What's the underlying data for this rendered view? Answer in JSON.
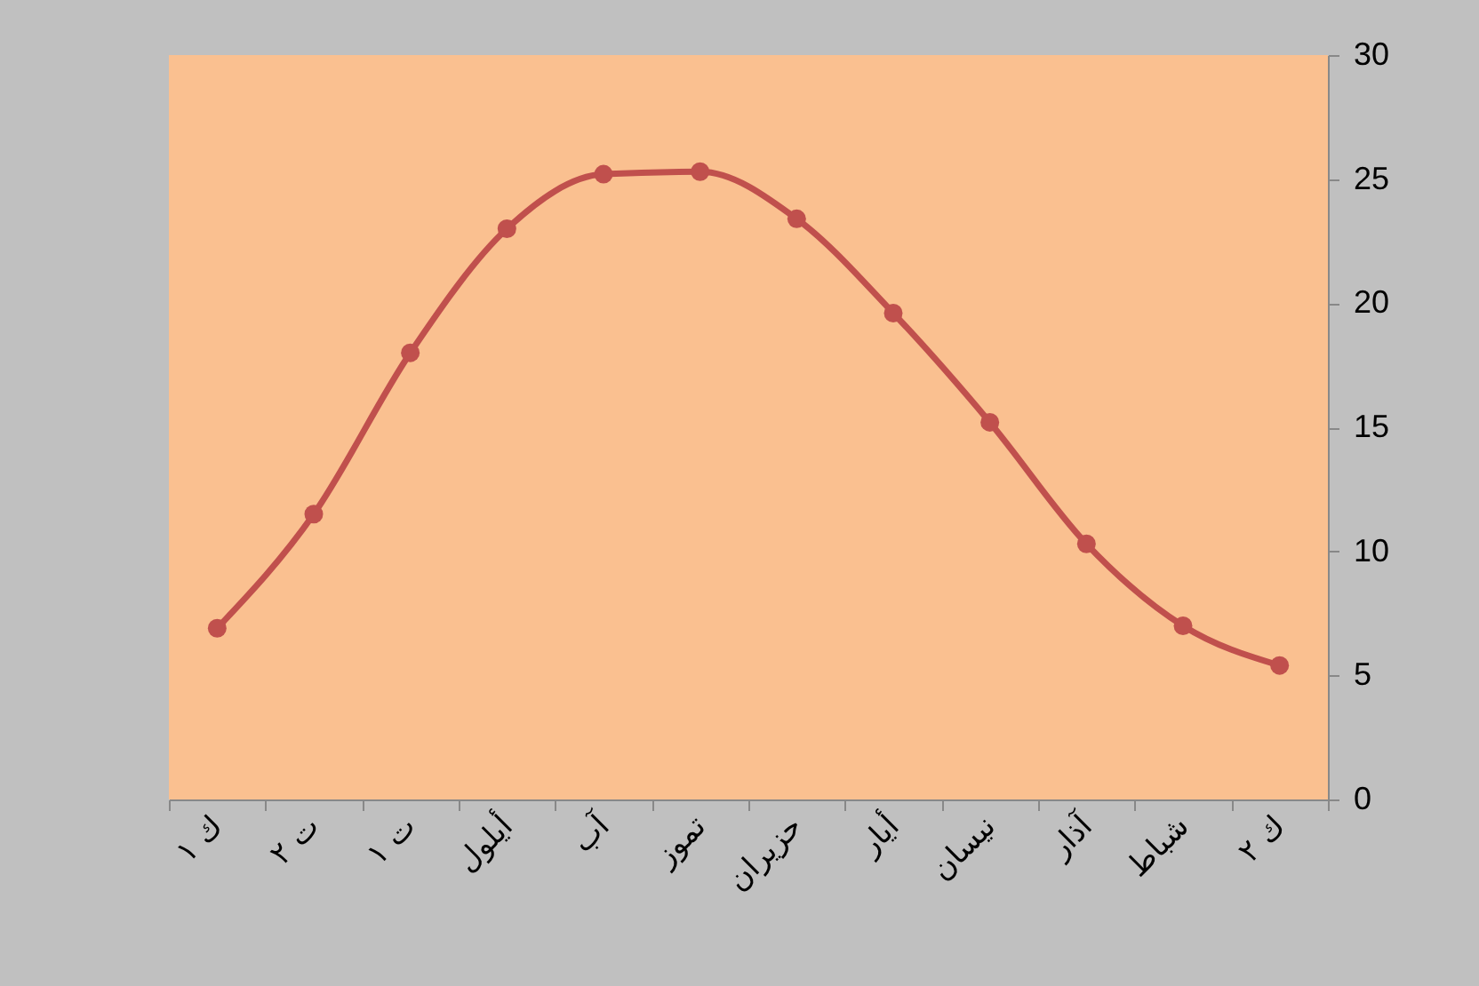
{
  "chart_data": {
    "type": "line",
    "categories": [
      "ك ١",
      "ت ٢",
      "ت ١",
      "أيلول",
      "آب",
      "تموز",
      "حزيران",
      "أيار",
      "نيسان",
      "آذار",
      "شباط",
      "ك ٢"
    ],
    "series": [
      {
        "color": "#c0504d",
        "values": [
          6.9,
          11.5,
          18.0,
          23.0,
          25.2,
          25.3,
          23.4,
          19.6,
          15.2,
          10.3,
          7.0,
          5.4
        ]
      }
    ],
    "ylim": [
      0,
      30
    ],
    "yticks": [
      0,
      5,
      10,
      15,
      20,
      25,
      30
    ],
    "grid": false,
    "marker": "circle",
    "line_style": "solid"
  }
}
